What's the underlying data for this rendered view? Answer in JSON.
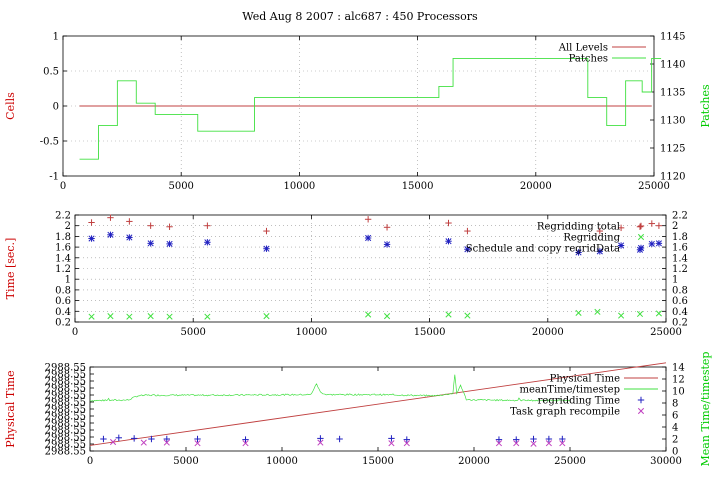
{
  "title": "Wed Aug 8 2007 : alc687 : 450 Processors",
  "colors": {
    "red": "#c04040",
    "green": "#40e040",
    "blue": "#2020c0",
    "magenta": "#c040c0",
    "ylabel_red": "#cc0000",
    "ylabel_green": "#00cc00"
  },
  "chart_data": [
    {
      "type": "line",
      "ylabel": "Cells",
      "y2label": "Patches",
      "xlim": [
        0,
        25000
      ],
      "ylim": [
        -1,
        1
      ],
      "y2lim": [
        1120,
        1145
      ],
      "xticks": [
        0,
        5000,
        10000,
        15000,
        20000,
        25000
      ],
      "xtick_labels": [
        "0",
        "5000",
        "10000",
        "15000",
        "20000",
        "25000"
      ],
      "yticks": [
        -1,
        -0.5,
        0,
        0.5,
        1
      ],
      "ytick_labels": [
        "-1",
        "-0.5",
        "0",
        "0.5",
        "1"
      ],
      "y2ticks": [
        1120,
        1125,
        1130,
        1135,
        1140,
        1145
      ],
      "y2tick_labels": [
        "1120",
        "1125",
        "1130",
        "1135",
        "1140",
        "1145"
      ],
      "grid": true,
      "legend_position": "top-right",
      "series": [
        {
          "name": "All Levels",
          "axis": "y1",
          "style": "line",
          "color": "red",
          "x": [
            700,
            24900
          ],
          "y": [
            0,
            0
          ]
        },
        {
          "name": "Patches",
          "axis": "y2",
          "style": "step",
          "color": "green",
          "x": [
            700,
            1500,
            2300,
            3100,
            3900,
            5700,
            8100,
            15900,
            16500,
            22200,
            23000,
            23800,
            24500,
            24900
          ],
          "y": [
            1123,
            1129,
            1137,
            1133,
            1131,
            1128,
            1134,
            1136,
            1141,
            1134,
            1129,
            1137,
            1135,
            1141
          ]
        }
      ]
    },
    {
      "type": "scatter",
      "ylabel": "Time [sec.]",
      "xlim": [
        0,
        25000
      ],
      "ylim": [
        0.2,
        2.2
      ],
      "y2lim": [
        0.2,
        2.2
      ],
      "xticks": [
        0,
        5000,
        10000,
        15000,
        20000,
        25000
      ],
      "xtick_labels": [
        "0",
        "5000",
        "10000",
        "15000",
        "20000",
        "25000"
      ],
      "yticks": [
        0.2,
        0.4,
        0.6,
        0.8,
        1,
        1.2,
        1.4,
        1.6,
        1.8,
        2,
        2.2
      ],
      "ytick_labels": [
        "0.2",
        "0.4",
        "0.6",
        "0.8",
        "1",
        "1.2",
        "1.4",
        "1.6",
        "1.8",
        "2",
        "2.2"
      ],
      "y2ticks": [
        0.2,
        0.4,
        0.6,
        0.8,
        1,
        1.2,
        1.4,
        1.6,
        1.8,
        2,
        2.2
      ],
      "y2tick_labels": [
        "0.2",
        "0.4",
        "0.6",
        "0.8",
        "1",
        "1.2",
        "1.4",
        "1.6",
        "1.8",
        "2",
        "2.2"
      ],
      "grid": true,
      "legend_position": "top-right",
      "series": [
        {
          "name": "Regridding total",
          "style": "plus",
          "color": "red",
          "x": [
            700,
            1500,
            2300,
            3200,
            4000,
            5600,
            8100,
            12400,
            13200,
            15800,
            16600,
            22200,
            23100,
            23900,
            24400,
            24700
          ],
          "y": [
            2.06,
            2.15,
            2.08,
            2.0,
            1.98,
            2.0,
            1.9,
            2.12,
            1.97,
            2.05,
            1.9,
            1.9,
            1.96,
            1.98,
            2.04,
            2.0
          ]
        },
        {
          "name": "Regridding",
          "style": "x",
          "color": "green",
          "x": [
            700,
            1500,
            2300,
            3200,
            4000,
            5600,
            8100,
            12400,
            13200,
            15800,
            16600,
            21300,
            22100,
            23100,
            23900,
            24700
          ],
          "y": [
            0.3,
            0.31,
            0.3,
            0.31,
            0.3,
            0.3,
            0.31,
            0.34,
            0.31,
            0.34,
            0.32,
            0.37,
            0.39,
            0.32,
            0.35,
            0.36
          ]
        },
        {
          "name": "Schedule and copy regridData",
          "style": "star",
          "color": "blue",
          "x": [
            700,
            1500,
            2300,
            3200,
            4000,
            5600,
            8100,
            12400,
            13200,
            15800,
            16600,
            21300,
            22200,
            23100,
            23900,
            24400,
            24700
          ],
          "y": [
            1.76,
            1.83,
            1.78,
            1.67,
            1.66,
            1.69,
            1.57,
            1.77,
            1.65,
            1.71,
            1.56,
            1.5,
            1.52,
            1.63,
            1.55,
            1.66,
            1.67
          ]
        }
      ]
    },
    {
      "type": "line",
      "ylabel": "Physical Time",
      "y2label": "Mean Time/timestep",
      "xlim": [
        0,
        30000
      ],
      "ylim": [
        0,
        12
      ],
      "y2lim": [
        0,
        14
      ],
      "xticks": [
        0,
        5000,
        10000,
        15000,
        20000,
        25000,
        30000
      ],
      "xtick_labels": [
        "0",
        "5000",
        "10000",
        "15000",
        "20000",
        "25000",
        "30000"
      ],
      "yticks": [
        0,
        1,
        2,
        3,
        4,
        5,
        6,
        7,
        8,
        9,
        10,
        11,
        12
      ],
      "ytick_labels": [
        "2988.55",
        "2988.55",
        "2988.55",
        "2988.55",
        "2988.55",
        "2988.55",
        "2988.55",
        "2988.55",
        "2988.55",
        "2988.55",
        "2988.55",
        "2988.55",
        "2988.55"
      ],
      "y2ticks": [
        0,
        2,
        4,
        6,
        8,
        10,
        12,
        14
      ],
      "y2tick_labels": [
        "0",
        "2",
        "4",
        "6",
        "8",
        "10",
        "12",
        "14"
      ],
      "grid": false,
      "legend_position": "top-right",
      "series": [
        {
          "name": "Physical Time",
          "axis": "y1",
          "style": "line",
          "color": "red",
          "x": [
            0,
            30000
          ],
          "y": [
            0.8,
            12.6
          ]
        },
        {
          "name": "meanTime/timestep",
          "axis": "y2",
          "style": "noisy-line",
          "color": "green",
          "x": [
            0,
            2000,
            2200,
            2500,
            3000,
            6000,
            11500,
            11800,
            12000,
            12300,
            12500,
            15000,
            18000,
            18900,
            19000,
            19100,
            19300,
            19600,
            20000,
            24500,
            25000
          ],
          "y": [
            8.4,
            8.5,
            8.8,
            9.2,
            9.3,
            9.3,
            9.4,
            11.2,
            9.8,
            9.4,
            9.4,
            9.4,
            9.2,
            9.6,
            12.8,
            9.5,
            11.0,
            8.6,
            8.5,
            8.4,
            8.4
          ]
        },
        {
          "name": "regridding Time",
          "axis": "y2",
          "style": "plus",
          "color": "blue",
          "x": [
            700,
            1500,
            2300,
            3200,
            4000,
            5600,
            8100,
            12000,
            13000,
            15700,
            16500,
            21300,
            22200,
            23100,
            23900,
            24600
          ],
          "y": [
            2.0,
            2.2,
            2.1,
            2.0,
            2.0,
            2.0,
            1.9,
            2.1,
            2.0,
            2.1,
            1.9,
            1.9,
            1.9,
            2.0,
            2.0,
            2.0
          ]
        },
        {
          "name": "Task graph recompile",
          "axis": "y2",
          "style": "x",
          "color": "magenta",
          "x": [
            1200,
            2800,
            4000,
            5600,
            8100,
            12000,
            15700,
            16500,
            21300,
            22200,
            23100,
            23900,
            24600
          ],
          "y": [
            1.5,
            1.4,
            1.4,
            1.3,
            1.3,
            1.4,
            1.3,
            1.3,
            1.3,
            1.3,
            1.2,
            1.3,
            1.3
          ]
        }
      ]
    }
  ]
}
